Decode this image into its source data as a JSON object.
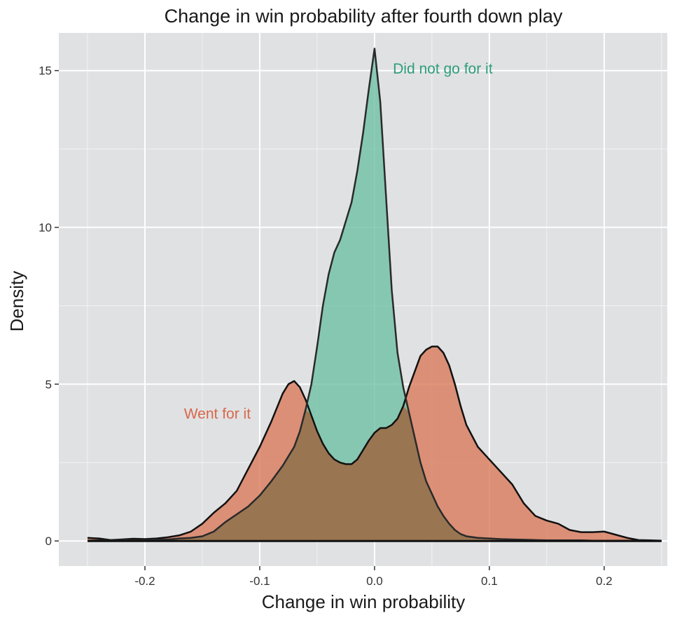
{
  "chart_data": {
    "type": "area",
    "title": "Change in win probability after fourth down play",
    "xlabel": "Change in win probability",
    "ylabel": "Density",
    "xlim": [
      -0.275,
      0.255
    ],
    "ylim": [
      -0.8,
      16.2
    ],
    "x_ticks": [
      -0.2,
      -0.1,
      0.0,
      0.1,
      0.2
    ],
    "x_tick_labels": [
      "-0.2",
      "-0.1",
      "0.0",
      "0.1",
      "0.2"
    ],
    "y_ticks": [
      0,
      5,
      10,
      15
    ],
    "y_tick_labels": [
      "0",
      "5",
      "10",
      "15"
    ],
    "grid": true,
    "background": "#e0e1e3",
    "series": [
      {
        "name": "Went for it",
        "color": "#d9674a",
        "fill": "#d97a5a",
        "x": [
          -0.25,
          -0.24,
          -0.23,
          -0.22,
          -0.21,
          -0.2,
          -0.19,
          -0.18,
          -0.17,
          -0.16,
          -0.15,
          -0.14,
          -0.13,
          -0.12,
          -0.11,
          -0.1,
          -0.09,
          -0.08,
          -0.075,
          -0.07,
          -0.065,
          -0.06,
          -0.055,
          -0.05,
          -0.045,
          -0.04,
          -0.035,
          -0.03,
          -0.025,
          -0.02,
          -0.015,
          -0.01,
          -0.005,
          0.0,
          0.005,
          0.01,
          0.015,
          0.02,
          0.025,
          0.03,
          0.035,
          0.04,
          0.045,
          0.05,
          0.055,
          0.06,
          0.065,
          0.07,
          0.075,
          0.08,
          0.09,
          0.1,
          0.11,
          0.12,
          0.13,
          0.14,
          0.15,
          0.16,
          0.17,
          0.18,
          0.19,
          0.2,
          0.21,
          0.22,
          0.23,
          0.24,
          0.25
        ],
        "values": [
          0.1,
          0.08,
          0.03,
          0.05,
          0.07,
          0.06,
          0.08,
          0.12,
          0.18,
          0.3,
          0.55,
          0.9,
          1.2,
          1.6,
          2.3,
          3.0,
          3.8,
          4.7,
          5.0,
          5.1,
          4.9,
          4.5,
          4.0,
          3.5,
          3.1,
          2.8,
          2.6,
          2.5,
          2.45,
          2.45,
          2.6,
          2.9,
          3.2,
          3.45,
          3.6,
          3.6,
          3.7,
          3.9,
          4.3,
          4.9,
          5.4,
          5.9,
          6.1,
          6.2,
          6.2,
          6.0,
          5.6,
          5.0,
          4.3,
          3.7,
          3.0,
          2.6,
          2.2,
          1.8,
          1.2,
          0.8,
          0.65,
          0.55,
          0.35,
          0.28,
          0.28,
          0.3,
          0.2,
          0.1,
          0.03,
          0.02,
          0.01
        ]
      },
      {
        "name": "Did not go for it",
        "color": "#2e9e7a",
        "fill": "#6fc0a4",
        "x": [
          -0.25,
          -0.24,
          -0.23,
          -0.22,
          -0.21,
          -0.2,
          -0.19,
          -0.18,
          -0.17,
          -0.16,
          -0.15,
          -0.14,
          -0.13,
          -0.12,
          -0.11,
          -0.1,
          -0.09,
          -0.08,
          -0.075,
          -0.07,
          -0.065,
          -0.06,
          -0.055,
          -0.05,
          -0.045,
          -0.04,
          -0.035,
          -0.03,
          -0.025,
          -0.02,
          -0.015,
          -0.01,
          -0.005,
          0.0,
          0.005,
          0.01,
          0.015,
          0.02,
          0.025,
          0.03,
          0.035,
          0.04,
          0.045,
          0.05,
          0.055,
          0.06,
          0.065,
          0.07,
          0.075,
          0.08,
          0.09,
          0.1,
          0.11,
          0.12,
          0.13,
          0.14,
          0.15,
          0.16,
          0.17,
          0.18,
          0.19,
          0.2,
          0.21,
          0.22,
          0.23,
          0.24,
          0.25
        ],
        "values": [
          0.01,
          0.02,
          0.02,
          0.03,
          0.03,
          0.03,
          0.04,
          0.05,
          0.08,
          0.1,
          0.15,
          0.3,
          0.6,
          0.85,
          1.1,
          1.45,
          1.9,
          2.4,
          2.7,
          3.0,
          3.5,
          4.2,
          5.0,
          6.2,
          7.5,
          8.5,
          9.2,
          9.6,
          10.2,
          10.8,
          11.8,
          13.0,
          14.4,
          15.7,
          14.0,
          11.0,
          8.0,
          6.0,
          4.9,
          4.1,
          3.3,
          2.5,
          1.9,
          1.5,
          1.1,
          0.8,
          0.55,
          0.35,
          0.22,
          0.15,
          0.1,
          0.08,
          0.06,
          0.05,
          0.04,
          0.03,
          0.02,
          0.02,
          0.02,
          0.02,
          0.01,
          0.01,
          0.01,
          0.01,
          0.01,
          0.01,
          0.01
        ]
      }
    ],
    "annotations": [
      {
        "text": "Did not go for it",
        "x": 0.016,
        "y": 14.9,
        "color": "#2e9e7a"
      },
      {
        "text": "Went for it",
        "x": -0.166,
        "y": 3.9,
        "color": "#d9674a"
      }
    ]
  }
}
